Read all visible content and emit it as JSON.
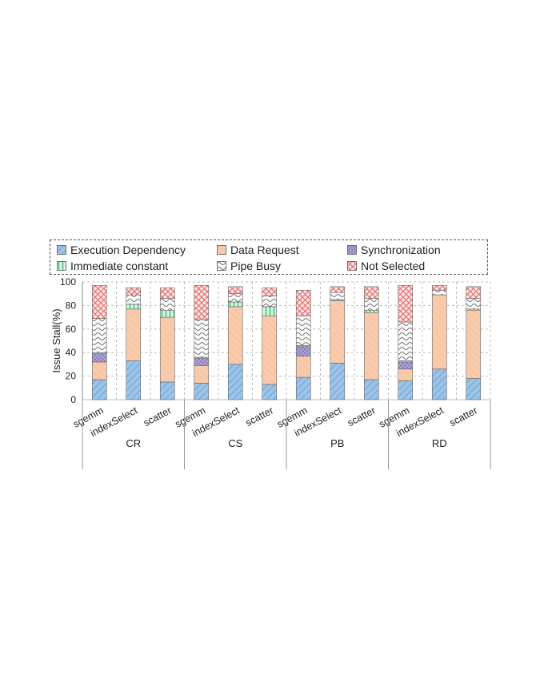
{
  "chart_data": {
    "type": "bar",
    "stacked": true,
    "ylabel": "Issue Stall(%)",
    "ylim": [
      0,
      100
    ],
    "yticks": [
      0,
      20,
      40,
      60,
      80,
      100
    ],
    "grid": "dashed horizontal and vertical",
    "legend_position": "top",
    "groups": [
      "CR",
      "CS",
      "PB",
      "RD"
    ],
    "categories": [
      "sgemm",
      "indexSelect",
      "scatter",
      "sgemm",
      "indexSelect",
      "scatter",
      "sgemm",
      "indexSelect",
      "scatter",
      "sgemm",
      "indexSelect",
      "scatter"
    ],
    "series": [
      {
        "name": "Execution Dependency",
        "color": "#9dc3e6",
        "values": [
          17,
          33,
          15,
          14,
          30,
          13,
          19,
          31,
          17,
          16,
          26,
          18
        ]
      },
      {
        "name": "Data Request",
        "color": "#f8cbad",
        "values": [
          15,
          44,
          55,
          15,
          49,
          58,
          18,
          53,
          57,
          10,
          63,
          58
        ]
      },
      {
        "name": "Synchronization",
        "color": "#b4a7d6",
        "values": [
          7,
          0,
          0,
          6,
          0,
          0,
          8,
          0,
          0,
          6,
          0,
          0
        ]
      },
      {
        "name": "Immediate constant",
        "color": "#a9dfbf",
        "values": [
          1,
          4,
          6,
          1,
          4,
          8,
          1,
          1,
          2,
          1,
          0,
          1
        ]
      },
      {
        "name": "Pipe Busy",
        "color": "#e7e6e6",
        "values": [
          29,
          8,
          10,
          32,
          7,
          9,
          25,
          6,
          10,
          33,
          4,
          9
        ]
      },
      {
        "name": "Not Selected",
        "color": "#f4b6b6",
        "values": [
          28,
          6,
          9,
          29,
          6,
          7,
          22,
          5,
          10,
          31,
          4,
          10
        ]
      }
    ]
  }
}
